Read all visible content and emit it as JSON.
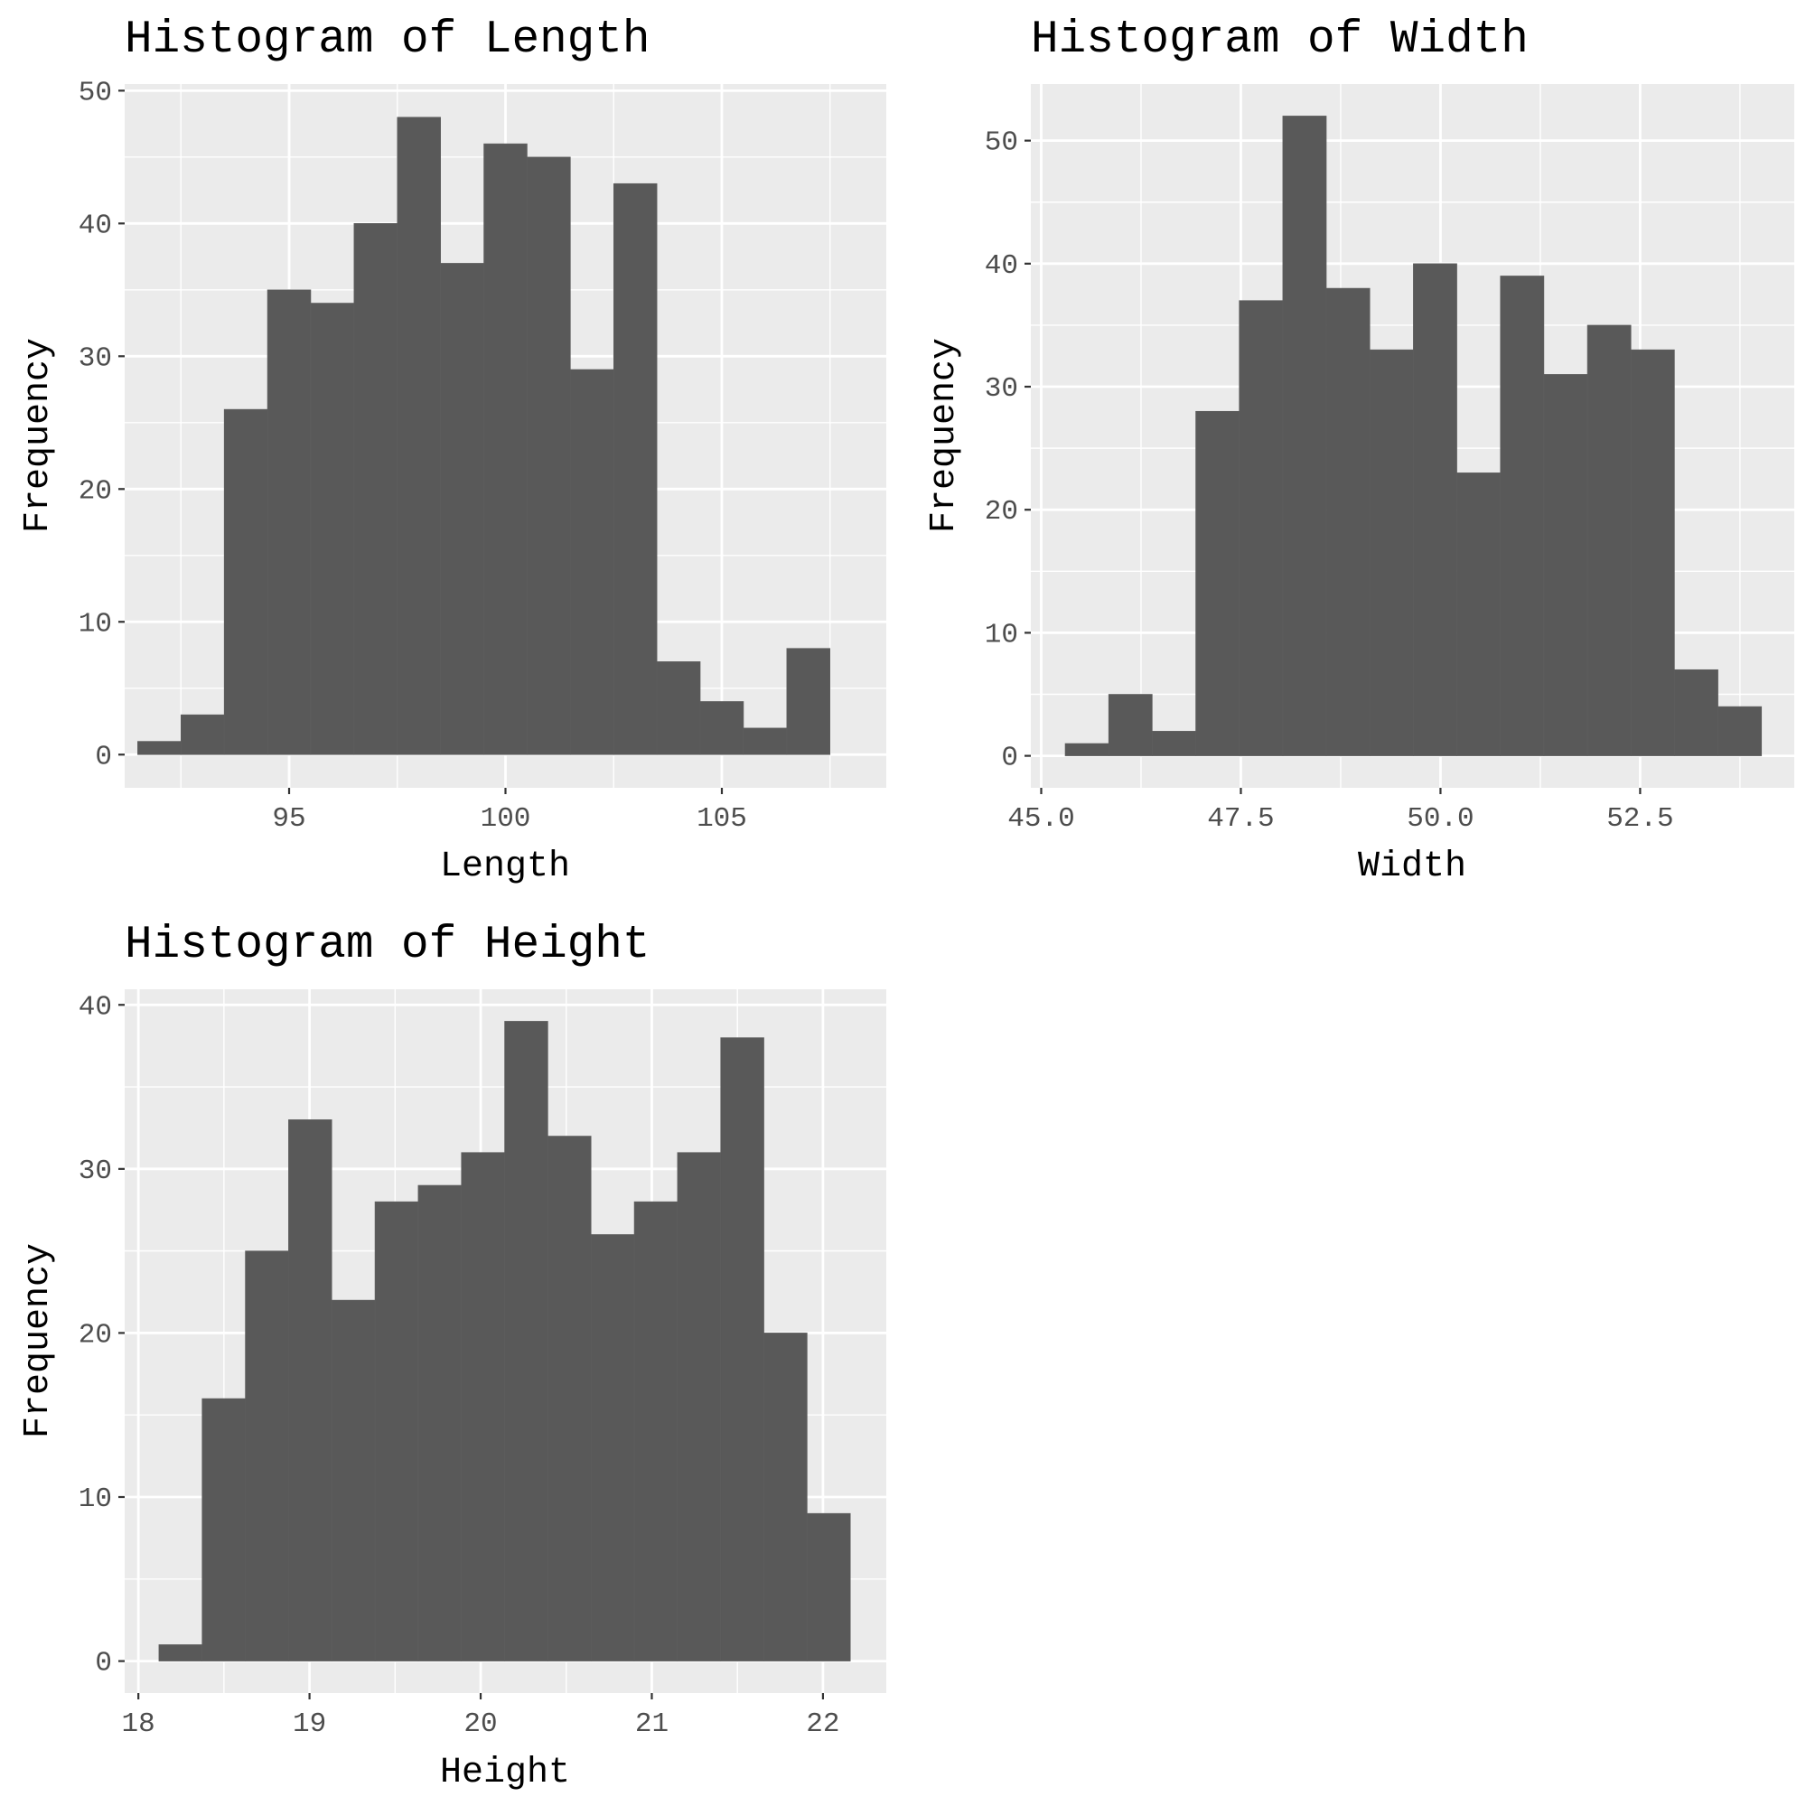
{
  "chart_data": [
    {
      "type": "bar",
      "title": "Histogram of Length",
      "xlabel": "Length",
      "ylabel": "Frequency",
      "bin_start": 91.5,
      "bin_width": 1.0,
      "values": [
        1,
        3,
        26,
        35,
        34,
        40,
        48,
        37,
        46,
        45,
        29,
        43,
        7,
        4,
        2,
        8
      ],
      "xlim": [
        91.2,
        108.8
      ],
      "ylim": [
        -2.5,
        50.5
      ],
      "xticks": [
        95,
        100,
        105
      ],
      "xtick_labels": [
        "95",
        "100",
        "105"
      ],
      "yticks": [
        0,
        10,
        20,
        30,
        40,
        50
      ],
      "ytick_labels": [
        "0",
        "10",
        "20",
        "30",
        "40",
        "50"
      ],
      "grid": true,
      "bar_color": "#595959",
      "panel_color": "#ebebeb"
    },
    {
      "type": "bar",
      "title": "Histogram of Width",
      "xlabel": "Width",
      "ylabel": "Frequency",
      "bin_start": 45.3,
      "bin_width": 0.545,
      "values": [
        1,
        5,
        2,
        28,
        37,
        52,
        38,
        33,
        40,
        23,
        39,
        31,
        35,
        33,
        7,
        4
      ],
      "xlim": [
        44.87,
        54.43
      ],
      "ylim": [
        -2.6,
        54.6
      ],
      "xticks": [
        45.0,
        47.5,
        50.0,
        52.5
      ],
      "xtick_labels": [
        "45.0",
        "47.5",
        "50.0",
        "52.5"
      ],
      "yticks": [
        0,
        10,
        20,
        30,
        40,
        50
      ],
      "ytick_labels": [
        "0",
        "10",
        "20",
        "30",
        "40",
        "50"
      ],
      "grid": true,
      "bar_color": "#595959",
      "panel_color": "#ebebeb"
    },
    {
      "type": "bar",
      "title": "Histogram of Height",
      "xlabel": "Height",
      "ylabel": "Frequency",
      "bin_start": 18.12,
      "bin_width": 0.2525,
      "values": [
        1,
        16,
        25,
        33,
        22,
        28,
        29,
        31,
        39,
        32,
        26,
        28,
        31,
        38,
        20,
        9
      ],
      "xlim": [
        17.92,
        22.37
      ],
      "ylim": [
        -1.95,
        40.95
      ],
      "xticks": [
        18,
        19,
        20,
        21,
        22
      ],
      "xtick_labels": [
        "18",
        "19",
        "20",
        "21",
        "22"
      ],
      "yticks": [
        0,
        10,
        20,
        30,
        40
      ],
      "ytick_labels": [
        "0",
        "10",
        "20",
        "30",
        "40"
      ],
      "grid": true,
      "bar_color": "#595959",
      "panel_color": "#ebebeb"
    }
  ]
}
